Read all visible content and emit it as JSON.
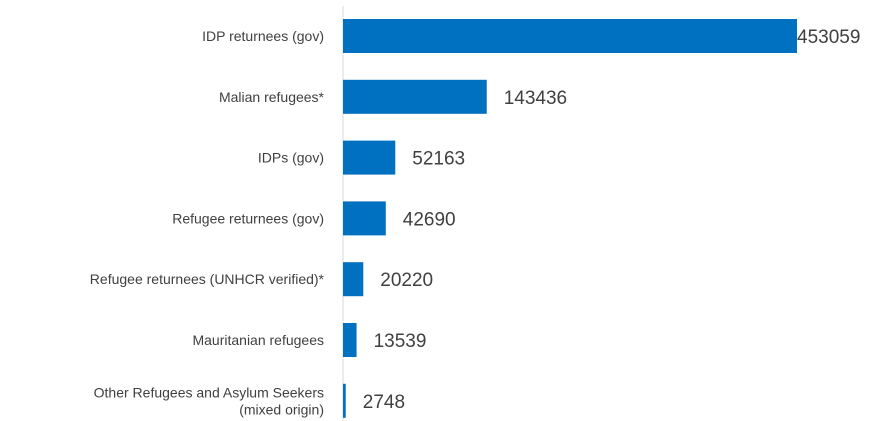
{
  "chart_data": {
    "type": "bar",
    "orientation": "horizontal",
    "title": "",
    "xlabel": "",
    "ylabel": "",
    "categories": [
      "IDP returnees (gov)",
      "Malian refugees*",
      "IDPs (gov)",
      "Refugee returnees (gov)",
      "Refugee returnees (UNHCR verified)*",
      "Mauritanian refugees",
      "Other Refugees and Asylum Seekers (mixed origin)"
    ],
    "category_lines": [
      [
        "IDP returnees (gov)"
      ],
      [
        "Malian refugees*"
      ],
      [
        "IDPs (gov)"
      ],
      [
        "Refugee returnees (gov)"
      ],
      [
        "Refugee returnees (UNHCR verified)*"
      ],
      [
        "Mauritanian refugees"
      ],
      [
        "Other Refugees and Asylum Seekers",
        "(mixed origin)"
      ]
    ],
    "values": [
      453059,
      143436,
      52163,
      42690,
      20220,
      13539,
      2748
    ],
    "xlim": [
      0,
      453059
    ],
    "grid": false,
    "legend": "none",
    "data_labels": true
  },
  "colors": {
    "bar": "#0070C0",
    "axis": "#D9D9D9",
    "text": "#404040"
  }
}
